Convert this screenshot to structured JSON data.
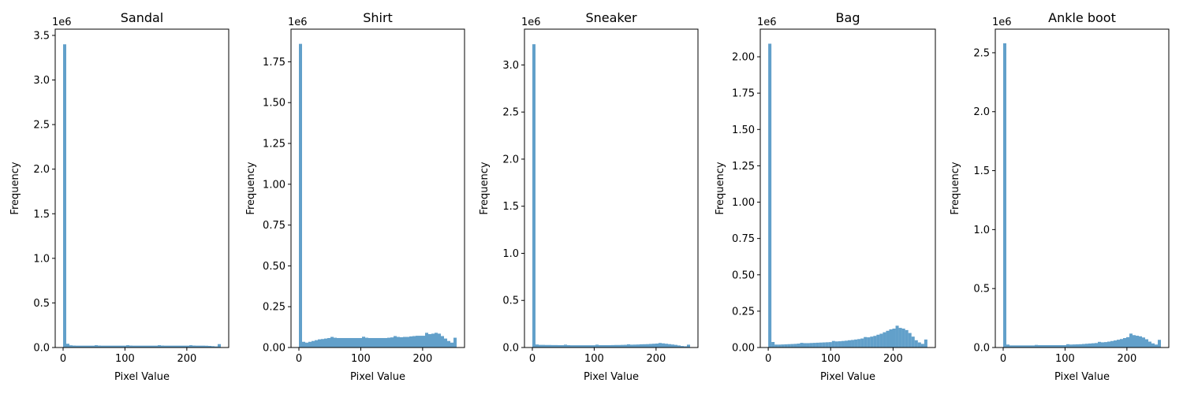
{
  "chart_data": [
    {
      "type": "bar",
      "title": "Sandal",
      "xlabel": "Pixel Value",
      "ylabel": "Frequency",
      "offset_label": "1e6",
      "bins": 50,
      "bin_range": [
        0,
        255
      ],
      "xlim": [
        -12.75,
        267.75
      ],
      "xticks": [
        0,
        100,
        200
      ],
      "ylim": [
        0,
        3.57
      ],
      "yticks": [
        0,
        0.5,
        1.0,
        1.5,
        2.0,
        2.5,
        3.0,
        3.5
      ],
      "ytick_labels": [
        "0.0",
        "0.5",
        "1.0",
        "1.5",
        "2.0",
        "2.5",
        "3.0",
        "3.5"
      ],
      "values": [
        3.4,
        0.042,
        0.025,
        0.022,
        0.021,
        0.021,
        0.021,
        0.021,
        0.021,
        0.021,
        0.026,
        0.022,
        0.021,
        0.021,
        0.021,
        0.021,
        0.021,
        0.021,
        0.021,
        0.021,
        0.026,
        0.022,
        0.021,
        0.021,
        0.021,
        0.021,
        0.021,
        0.021,
        0.021,
        0.021,
        0.026,
        0.022,
        0.021,
        0.021,
        0.021,
        0.021,
        0.021,
        0.021,
        0.021,
        0.021,
        0.026,
        0.022,
        0.021,
        0.021,
        0.021,
        0.02,
        0.018,
        0.015,
        0.012,
        0.038
      ]
    },
    {
      "type": "bar",
      "title": "Shirt",
      "xlabel": "Pixel Value",
      "ylabel": "Frequency",
      "offset_label": "1e6",
      "bins": 50,
      "bin_range": [
        0,
        255
      ],
      "xlim": [
        -12.75,
        267.75
      ],
      "xticks": [
        0,
        100,
        200
      ],
      "ylim": [
        0,
        1.95
      ],
      "yticks": [
        0,
        0.25,
        0.5,
        0.75,
        1.0,
        1.25,
        1.5,
        1.75
      ],
      "ytick_labels": [
        "0.00",
        "0.25",
        "0.50",
        "0.75",
        "1.00",
        "1.25",
        "1.50",
        "1.75"
      ],
      "values": [
        1.86,
        0.035,
        0.03,
        0.035,
        0.04,
        0.045,
        0.05,
        0.052,
        0.055,
        0.058,
        0.065,
        0.06,
        0.058,
        0.058,
        0.058,
        0.058,
        0.058,
        0.058,
        0.058,
        0.058,
        0.066,
        0.06,
        0.058,
        0.058,
        0.058,
        0.058,
        0.058,
        0.058,
        0.06,
        0.062,
        0.07,
        0.065,
        0.063,
        0.065,
        0.065,
        0.068,
        0.07,
        0.072,
        0.072,
        0.072,
        0.09,
        0.082,
        0.085,
        0.09,
        0.085,
        0.07,
        0.055,
        0.04,
        0.03,
        0.06
      ]
    },
    {
      "type": "bar",
      "title": "Sneaker",
      "xlabel": "Pixel Value",
      "ylabel": "Frequency",
      "offset_label": "1e6",
      "bins": 50,
      "bin_range": [
        0,
        255
      ],
      "xlim": [
        -12.75,
        267.75
      ],
      "xticks": [
        0,
        100,
        200
      ],
      "ylim": [
        0,
        3.38
      ],
      "yticks": [
        0,
        0.5,
        1.0,
        1.5,
        2.0,
        2.5,
        3.0
      ],
      "ytick_labels": [
        "0.0",
        "0.5",
        "1.0",
        "1.5",
        "2.0",
        "2.5",
        "3.0"
      ],
      "values": [
        3.22,
        0.032,
        0.028,
        0.028,
        0.027,
        0.027,
        0.026,
        0.026,
        0.025,
        0.025,
        0.03,
        0.025,
        0.024,
        0.024,
        0.024,
        0.024,
        0.024,
        0.024,
        0.024,
        0.024,
        0.03,
        0.025,
        0.025,
        0.025,
        0.025,
        0.026,
        0.027,
        0.027,
        0.028,
        0.029,
        0.034,
        0.03,
        0.031,
        0.032,
        0.034,
        0.035,
        0.036,
        0.038,
        0.04,
        0.042,
        0.048,
        0.044,
        0.04,
        0.036,
        0.032,
        0.028,
        0.022,
        0.016,
        0.013,
        0.03
      ]
    },
    {
      "type": "bar",
      "title": "Bag",
      "xlabel": "Pixel Value",
      "ylabel": "Frequency",
      "offset_label": "1e6",
      "bins": 50,
      "bin_range": [
        0,
        255
      ],
      "xlim": [
        -12.75,
        267.75
      ],
      "xticks": [
        0,
        100,
        200
      ],
      "ylim": [
        0,
        2.19
      ],
      "yticks": [
        0,
        0.25,
        0.5,
        0.75,
        1.0,
        1.25,
        1.5,
        1.75,
        2.0
      ],
      "ytick_labels": [
        "0.00",
        "0.25",
        "0.50",
        "0.75",
        "1.00",
        "1.25",
        "1.50",
        "1.75",
        "2.00"
      ],
      "values": [
        2.09,
        0.038,
        0.02,
        0.02,
        0.021,
        0.022,
        0.023,
        0.024,
        0.025,
        0.027,
        0.032,
        0.03,
        0.03,
        0.031,
        0.032,
        0.033,
        0.034,
        0.035,
        0.036,
        0.037,
        0.045,
        0.042,
        0.043,
        0.045,
        0.047,
        0.05,
        0.052,
        0.055,
        0.058,
        0.062,
        0.072,
        0.07,
        0.075,
        0.08,
        0.088,
        0.095,
        0.105,
        0.115,
        0.125,
        0.13,
        0.15,
        0.135,
        0.13,
        0.12,
        0.1,
        0.075,
        0.05,
        0.035,
        0.025,
        0.055
      ]
    },
    {
      "type": "bar",
      "title": "Ankle boot",
      "xlabel": "Pixel Value",
      "ylabel": "Frequency",
      "offset_label": "1e6",
      "bins": 50,
      "bin_range": [
        0,
        255
      ],
      "xlim": [
        -12.75,
        267.75
      ],
      "xticks": [
        0,
        100,
        200
      ],
      "ylim": [
        0,
        2.7
      ],
      "yticks": [
        0,
        0.5,
        1.0,
        1.5,
        2.0,
        2.5
      ],
      "ytick_labels": [
        "0.0",
        "0.5",
        "1.0",
        "1.5",
        "2.0",
        "2.5"
      ],
      "values": [
        2.58,
        0.025,
        0.018,
        0.018,
        0.018,
        0.018,
        0.018,
        0.018,
        0.018,
        0.018,
        0.022,
        0.02,
        0.02,
        0.02,
        0.02,
        0.02,
        0.02,
        0.02,
        0.02,
        0.02,
        0.028,
        0.025,
        0.026,
        0.027,
        0.028,
        0.03,
        0.032,
        0.034,
        0.036,
        0.038,
        0.048,
        0.044,
        0.046,
        0.05,
        0.055,
        0.06,
        0.066,
        0.072,
        0.08,
        0.088,
        0.118,
        0.105,
        0.1,
        0.095,
        0.085,
        0.07,
        0.05,
        0.035,
        0.025,
        0.065
      ]
    }
  ]
}
